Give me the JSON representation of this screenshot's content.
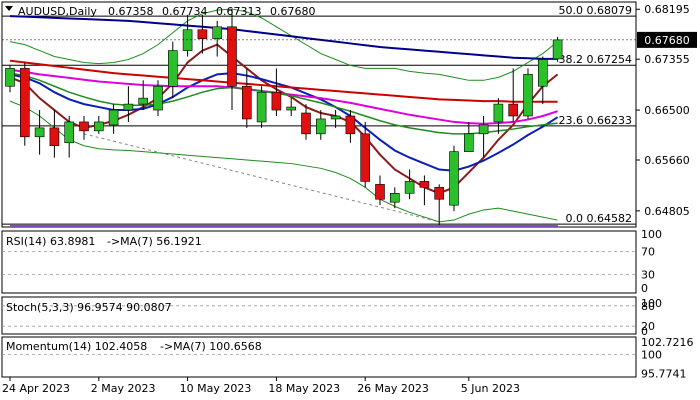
{
  "chart_data": {
    "type": "candlestick",
    "main": {
      "title": "AUDUSD,Daily",
      "ohlc_text": [
        "0.67358",
        "0.67734",
        "0.67313",
        "0.67680"
      ],
      "ylim": [
        0.6455,
        0.683
      ],
      "price_ticks": [
        "0.68195",
        "0.67355",
        "0.66500",
        "0.65660",
        "0.64805"
      ],
      "current_price": "0.67680",
      "fib_levels": [
        {
          "label": "50.0",
          "value": "0.68079"
        },
        {
          "label": "38.2",
          "value": "0.67254"
        },
        {
          "label": "23.6",
          "value": "0.66233"
        },
        {
          "label": "0.0",
          "value": "0.64582"
        }
      ],
      "candles": [
        {
          "o": 0.669,
          "h": 0.6725,
          "l": 0.668,
          "c": 0.672
        },
        {
          "o": 0.672,
          "h": 0.673,
          "l": 0.659,
          "c": 0.6605
        },
        {
          "o": 0.6605,
          "h": 0.665,
          "l": 0.6575,
          "c": 0.662
        },
        {
          "o": 0.662,
          "h": 0.665,
          "l": 0.657,
          "c": 0.659
        },
        {
          "o": 0.6595,
          "h": 0.664,
          "l": 0.657,
          "c": 0.663
        },
        {
          "o": 0.663,
          "h": 0.664,
          "l": 0.66,
          "c": 0.6615
        },
        {
          "o": 0.6615,
          "h": 0.664,
          "l": 0.661,
          "c": 0.663
        },
        {
          "o": 0.6625,
          "h": 0.666,
          "l": 0.661,
          "c": 0.665
        },
        {
          "o": 0.665,
          "h": 0.669,
          "l": 0.663,
          "c": 0.666
        },
        {
          "o": 0.666,
          "h": 0.67,
          "l": 0.665,
          "c": 0.667
        },
        {
          "o": 0.665,
          "h": 0.67,
          "l": 0.664,
          "c": 0.669
        },
        {
          "o": 0.669,
          "h": 0.6765,
          "l": 0.667,
          "c": 0.675
        },
        {
          "o": 0.675,
          "h": 0.681,
          "l": 0.674,
          "c": 0.6785
        },
        {
          "o": 0.6785,
          "h": 0.681,
          "l": 0.6745,
          "c": 0.677
        },
        {
          "o": 0.677,
          "h": 0.68,
          "l": 0.674,
          "c": 0.679
        },
        {
          "o": 0.679,
          "h": 0.682,
          "l": 0.665,
          "c": 0.669
        },
        {
          "o": 0.669,
          "h": 0.672,
          "l": 0.662,
          "c": 0.6635
        },
        {
          "o": 0.663,
          "h": 0.669,
          "l": 0.662,
          "c": 0.668
        },
        {
          "o": 0.668,
          "h": 0.672,
          "l": 0.664,
          "c": 0.665
        },
        {
          "o": 0.665,
          "h": 0.667,
          "l": 0.664,
          "c": 0.6655
        },
        {
          "o": 0.6645,
          "h": 0.666,
          "l": 0.66,
          "c": 0.661
        },
        {
          "o": 0.661,
          "h": 0.665,
          "l": 0.66,
          "c": 0.6635
        },
        {
          "o": 0.6635,
          "h": 0.665,
          "l": 0.662,
          "c": 0.664
        },
        {
          "o": 0.664,
          "h": 0.665,
          "l": 0.6595,
          "c": 0.661
        },
        {
          "o": 0.661,
          "h": 0.663,
          "l": 0.652,
          "c": 0.653
        },
        {
          "o": 0.6525,
          "h": 0.654,
          "l": 0.649,
          "c": 0.65
        },
        {
          "o": 0.6495,
          "h": 0.652,
          "l": 0.6485,
          "c": 0.651
        },
        {
          "o": 0.651,
          "h": 0.655,
          "l": 0.65,
          "c": 0.653
        },
        {
          "o": 0.653,
          "h": 0.654,
          "l": 0.649,
          "c": 0.652
        },
        {
          "o": 0.652,
          "h": 0.6525,
          "l": 0.6455,
          "c": 0.65
        },
        {
          "o": 0.649,
          "h": 0.659,
          "l": 0.648,
          "c": 0.658
        },
        {
          "o": 0.658,
          "h": 0.663,
          "l": 0.658,
          "c": 0.661
        },
        {
          "o": 0.661,
          "h": 0.664,
          "l": 0.657,
          "c": 0.6625
        },
        {
          "o": 0.663,
          "h": 0.667,
          "l": 0.661,
          "c": 0.666
        },
        {
          "o": 0.666,
          "h": 0.672,
          "l": 0.663,
          "c": 0.664
        },
        {
          "o": 0.664,
          "h": 0.672,
          "l": 0.6635,
          "c": 0.671
        },
        {
          "o": 0.669,
          "h": 0.674,
          "l": 0.666,
          "c": 0.6735
        },
        {
          "o": 0.6736,
          "h": 0.6773,
          "l": 0.6731,
          "c": 0.6768
        }
      ],
      "moving_averages": [
        {
          "color": "#8b1a1a",
          "values": [
            0.6705,
            0.6695,
            0.667,
            0.665,
            0.663,
            0.662,
            0.6625,
            0.6632,
            0.6642,
            0.6655,
            0.667,
            0.6695,
            0.673,
            0.675,
            0.676,
            0.674,
            0.672,
            0.67,
            0.6685,
            0.6672,
            0.6655,
            0.6645,
            0.664,
            0.663,
            0.6605,
            0.6575,
            0.655,
            0.6535,
            0.652,
            0.651,
            0.652,
            0.6545,
            0.657,
            0.66,
            0.6625,
            0.666,
            0.669,
            0.671
          ]
        },
        {
          "color": "#0b1fb5",
          "values": [
            0.671,
            0.6705,
            0.6695,
            0.668,
            0.6668,
            0.666,
            0.6655,
            0.665,
            0.665,
            0.6652,
            0.666,
            0.6672,
            0.6688,
            0.67,
            0.671,
            0.6712,
            0.6708,
            0.6702,
            0.6695,
            0.6688,
            0.6678,
            0.6668,
            0.6655,
            0.664,
            0.662,
            0.66,
            0.6582,
            0.657,
            0.656,
            0.655,
            0.6548,
            0.6555,
            0.6565,
            0.6578,
            0.6592,
            0.6608,
            0.6622,
            0.6638
          ]
        },
        {
          "color": "#00008b",
          "values": [
            0.6808,
            0.6807,
            0.6806,
            0.6805,
            0.6804,
            0.6803,
            0.6802,
            0.6801,
            0.68,
            0.6798,
            0.6796,
            0.6794,
            0.6792,
            0.679,
            0.6788,
            0.6786,
            0.6783,
            0.678,
            0.6777,
            0.6774,
            0.6771,
            0.6768,
            0.6765,
            0.6762,
            0.6759,
            0.6756,
            0.6754,
            0.6752,
            0.675,
            0.6748,
            0.6746,
            0.6744,
            0.6742,
            0.674,
            0.6738,
            0.6737,
            0.6736,
            0.6736
          ]
        },
        {
          "color": "#cc0000",
          "values": [
            0.6733,
            0.673,
            0.6727,
            0.6724,
            0.6721,
            0.6718,
            0.6715,
            0.6712,
            0.671,
            0.6708,
            0.6706,
            0.6704,
            0.6702,
            0.67,
            0.6698,
            0.6696,
            0.6694,
            0.6692,
            0.669,
            0.6688,
            0.6686,
            0.6684,
            0.6682,
            0.668,
            0.6678,
            0.6676,
            0.6674,
            0.6672,
            0.667,
            0.6668,
            0.6667,
            0.6666,
            0.6665,
            0.6665,
            0.6664,
            0.6664,
            0.6664,
            0.6664
          ]
        },
        {
          "color": "#dd00dd",
          "values": [
            0.6718,
            0.6714,
            0.671,
            0.6707,
            0.6704,
            0.6701,
            0.6698,
            0.6696,
            0.6694,
            0.6692,
            0.6691,
            0.669,
            0.669,
            0.669,
            0.669,
            0.6688,
            0.6685,
            0.6682,
            0.6679,
            0.6676,
            0.6673,
            0.667,
            0.6666,
            0.6662,
            0.6657,
            0.6652,
            0.6647,
            0.6642,
            0.6638,
            0.6634,
            0.663,
            0.6628,
            0.6627,
            0.6628,
            0.663,
            0.6634,
            0.664,
            0.6648
          ]
        },
        {
          "color": "#1e8c1e",
          "values": [
            0.6712,
            0.6708,
            0.67,
            0.669,
            0.668,
            0.6672,
            0.6665,
            0.666,
            0.6658,
            0.6658,
            0.666,
            0.6665,
            0.6672,
            0.668,
            0.6686,
            0.6688,
            0.6686,
            0.6682,
            0.6678,
            0.6674,
            0.6668,
            0.6662,
            0.6655,
            0.6648,
            0.664,
            0.6632,
            0.6625,
            0.662,
            0.6616,
            0.6612,
            0.661,
            0.661,
            0.6612,
            0.6615,
            0.6618,
            0.6622,
            0.6625,
            0.6628
          ]
        }
      ],
      "bollinger_upper": [
        0.6765,
        0.676,
        0.675,
        0.674,
        0.6735,
        0.673,
        0.6728,
        0.673,
        0.6735,
        0.6745,
        0.676,
        0.678,
        0.68,
        0.6812,
        0.6818,
        0.682,
        0.6815,
        0.6805,
        0.679,
        0.6775,
        0.676,
        0.6745,
        0.6735,
        0.6725,
        0.672,
        0.672,
        0.672,
        0.6715,
        0.6712,
        0.671,
        0.6705,
        0.67,
        0.67,
        0.6705,
        0.6715,
        0.673,
        0.6745,
        0.6765
      ],
      "bollinger_lower": [
        0.6665,
        0.6655,
        0.664,
        0.662,
        0.66,
        0.659,
        0.6585,
        0.6583,
        0.6582,
        0.658,
        0.6578,
        0.6576,
        0.6574,
        0.6572,
        0.657,
        0.6568,
        0.6566,
        0.6564,
        0.6562,
        0.656,
        0.6556,
        0.6552,
        0.6545,
        0.6535,
        0.652,
        0.65,
        0.6488,
        0.6478,
        0.647,
        0.6462,
        0.6465,
        0.6475,
        0.6482,
        0.6485,
        0.648,
        0.6475,
        0.647,
        0.6465
      ]
    },
    "rsi": {
      "label": "RSI(14) 63.8981",
      "ma_label": "->MA(7) 56.1921",
      "ticks": [
        "100",
        "70",
        "30",
        "0"
      ],
      "ylim": [
        0,
        100
      ],
      "values": [
        47,
        46,
        44,
        43,
        43,
        44,
        45,
        46,
        47,
        48,
        50,
        53,
        57,
        60,
        61,
        62,
        58,
        54,
        52,
        52,
        50,
        49,
        49,
        47,
        42,
        38,
        36,
        36,
        37,
        36,
        40,
        45,
        49,
        52,
        55,
        58,
        61,
        64
      ],
      "ma_values": [
        48,
        47,
        46,
        45,
        44,
        44,
        44,
        45,
        45,
        46,
        47,
        49,
        51,
        53,
        55,
        57,
        58,
        57,
        56,
        55,
        54,
        52,
        51,
        50,
        48,
        45,
        43,
        41,
        39,
        38,
        38,
        39,
        41,
        43,
        45,
        48,
        52,
        56
      ]
    },
    "stoch": {
      "label": "Stoch(5,3,3) 96.9574 90.0807",
      "ticks": [
        "80",
        "100",
        "20",
        "0"
      ],
      "ylim": [
        0,
        100
      ],
      "k_values": [
        60,
        50,
        40,
        30,
        35,
        45,
        55,
        65,
        75,
        85,
        92,
        94,
        93,
        92,
        80,
        60,
        50,
        55,
        50,
        45,
        40,
        35,
        30,
        20,
        15,
        12,
        12,
        14,
        15,
        18,
        35,
        55,
        75,
        90,
        92,
        93,
        95,
        97
      ],
      "d_values": [
        62,
        55,
        45,
        35,
        33,
        38,
        47,
        55,
        65,
        75,
        85,
        90,
        93,
        93,
        88,
        78,
        65,
        57,
        53,
        50,
        45,
        40,
        35,
        28,
        22,
        16,
        13,
        12,
        13,
        15,
        22,
        35,
        55,
        73,
        85,
        90,
        92,
        90
      ]
    },
    "momentum": {
      "label": "Momentum(14) 102.4058",
      "ma_label": "->MA(7) 100.6568",
      "ticks": [
        "102.7216",
        "100",
        "95.7741"
      ],
      "ylim": [
        95.2,
        103.4
      ],
      "values": [
        100.2,
        100.0,
        99.8,
        99.6,
        99.5,
        99.6,
        99.8,
        100.0,
        100.2,
        100.3,
        100.4,
        100.6,
        100.9,
        101.2,
        101.3,
        101.2,
        100.5,
        100.0,
        99.6,
        99.2,
        98.9,
        98.5,
        98.2,
        97.8,
        97.0,
        96.5,
        96.3,
        96.4,
        96.6,
        96.9,
        97.6,
        98.5,
        99.4,
        100.3,
        100.8,
        101.3,
        101.9,
        102.4
      ],
      "ma_values": [
        100.1,
        100.0,
        99.9,
        99.8,
        99.7,
        99.7,
        99.7,
        99.8,
        99.9,
        100.0,
        100.1,
        100.2,
        100.4,
        100.6,
        100.8,
        100.9,
        100.9,
        100.8,
        100.6,
        100.4,
        100.1,
        99.8,
        99.4,
        99.0,
        98.6,
        98.1,
        97.6,
        97.2,
        96.9,
        96.7,
        96.8,
        97.1,
        97.6,
        98.2,
        98.8,
        99.4,
        100.0,
        100.6
      ]
    },
    "x_labels": [
      {
        "text": "24 Apr 2023",
        "index": 0
      },
      {
        "text": "2 May 2023",
        "index": 6
      },
      {
        "text": "10 May 2023",
        "index": 12
      },
      {
        "text": "18 May 2023",
        "index": 18
      },
      {
        "text": "26 May 2023",
        "index": 24
      },
      {
        "text": "5 Jun 2023",
        "index": 31
      }
    ],
    "colors": {
      "bull": "#2bbf2b",
      "bear": "#e01010",
      "rsi_line": "#cc0000",
      "rsi_ma": "#1e8c1e",
      "stoch_k": "#2a8fa8",
      "stoch_d": "#cc0000",
      "momentum_line": "#dd00dd",
      "momentum_ma": "#1e8c1e",
      "bollinger": "#1e8c1e"
    }
  }
}
